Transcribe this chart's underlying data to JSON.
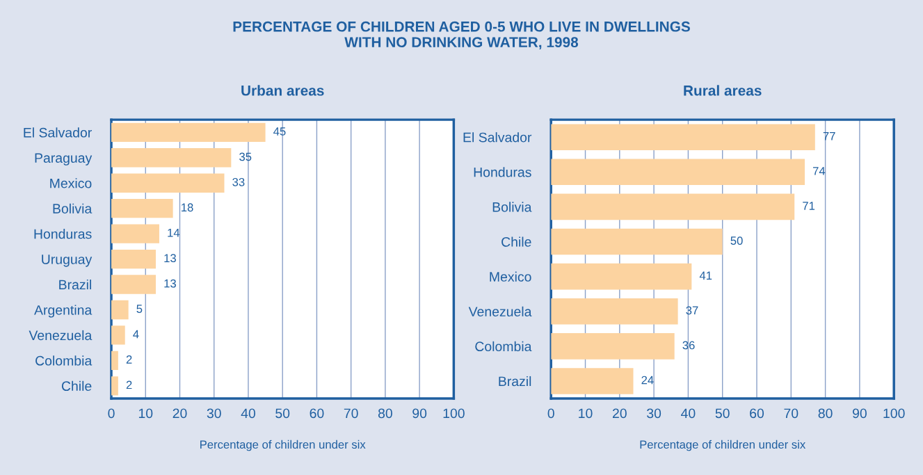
{
  "chart_data": [
    {
      "type": "bar",
      "orientation": "horizontal",
      "title": "Urban areas",
      "xlabel": "Percentage of children under six",
      "annotations": [
        "PERCENTAGE OF CHILDREN AGED 0-5 WHO LIVE IN DWELLINGS\nWITH NO DRINKING WATER, 1998"
      ],
      "categories": [
        "El Salvador",
        "Paraguay",
        "Mexico",
        "Bolivia",
        "Honduras",
        "Uruguay",
        "Brazil",
        "Argentina",
        "Venezuela",
        "Colombia",
        "Chile"
      ],
      "values": [
        45,
        35,
        33,
        18,
        14,
        13,
        13,
        5,
        4,
        2,
        2
      ],
      "color": "#fcd3a0",
      "data_labels": true,
      "xlim": [
        0,
        100
      ],
      "xticks": [
        0,
        10,
        20,
        30,
        40,
        50,
        60,
        70,
        80,
        90,
        100
      ],
      "grid": "x",
      "legend": false
    },
    {
      "type": "bar",
      "orientation": "horizontal",
      "title": "Rural areas",
      "xlabel": "Percentage of children under six",
      "categories": [
        "El Salvador",
        "Honduras",
        "Bolivia",
        "Chile",
        "Mexico",
        "Venezuela",
        "Colombia",
        "Brazil"
      ],
      "values": [
        77,
        74,
        71,
        50,
        41,
        37,
        36,
        24
      ],
      "color": "#fcd3a0",
      "data_labels": true,
      "xlim": [
        0,
        100
      ],
      "xticks": [
        0,
        10,
        20,
        30,
        40,
        50,
        60,
        70,
        80,
        90,
        100
      ],
      "grid": "x",
      "legend": false
    }
  ]
}
